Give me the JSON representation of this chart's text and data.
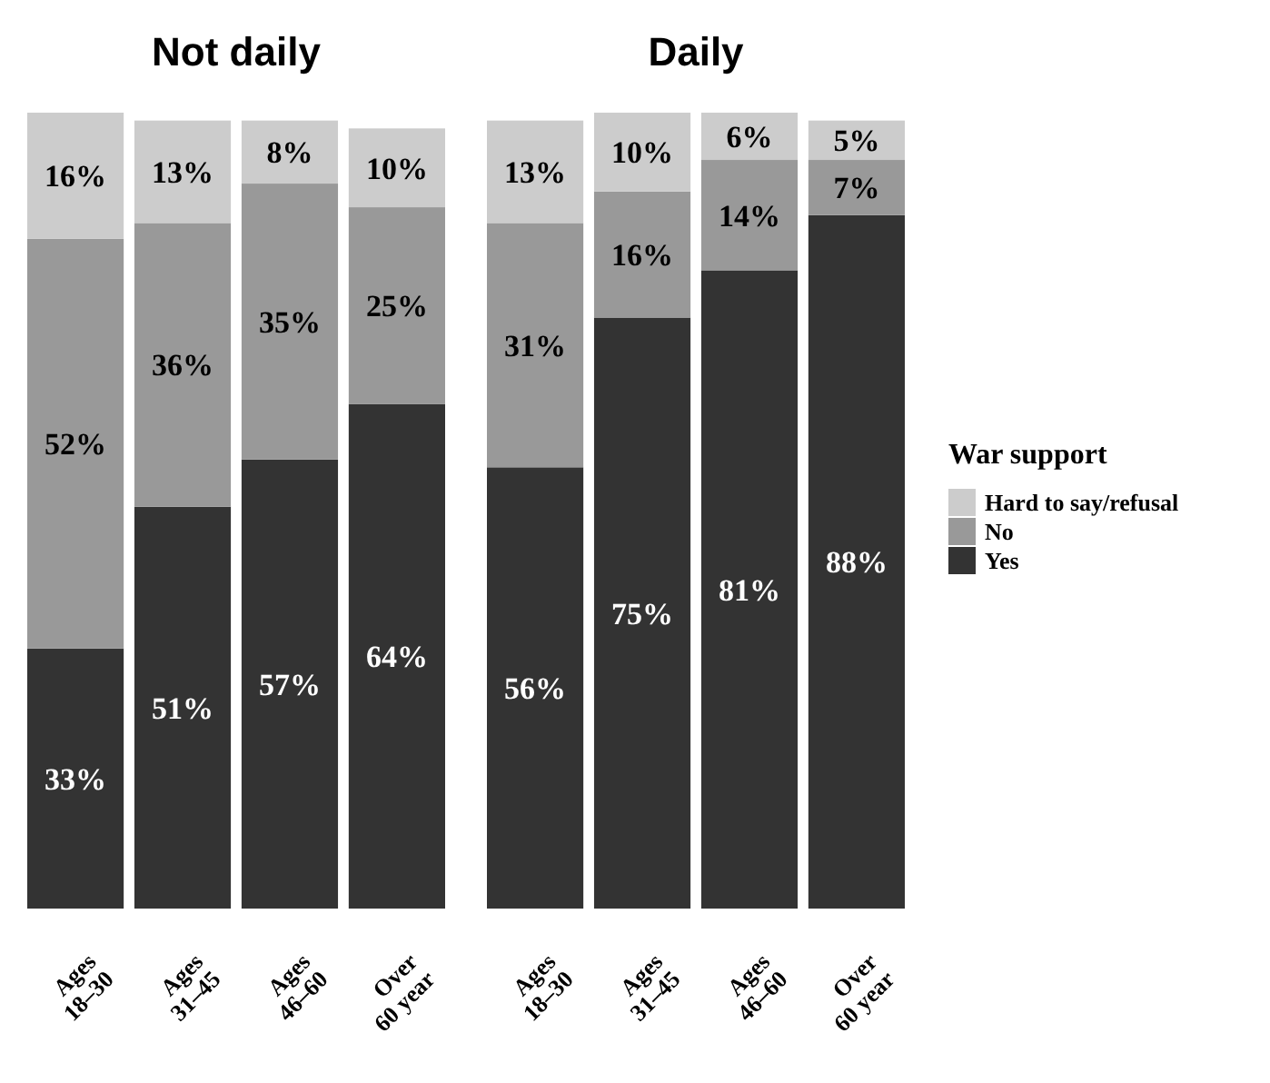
{
  "chart_data": [
    {
      "type": "bar",
      "title": "Not daily",
      "stacked": true,
      "legend": "right",
      "legend_title": "War support",
      "categories": [
        "Ages 18–30",
        "Ages 31–45",
        "Ages 46–60",
        "Over 60 year"
      ],
      "series": [
        {
          "name": "Yes",
          "color": "#333333",
          "values": [
            33,
            51,
            57,
            64
          ],
          "value_labels": [
            "33%",
            "51%",
            "57%",
            "64%"
          ]
        },
        {
          "name": "No",
          "color": "#999999",
          "values": [
            52,
            36,
            35,
            25
          ],
          "value_labels": [
            "52%",
            "36%",
            "35%",
            "25%"
          ]
        },
        {
          "name": "Hard to say/refusal",
          "color": "#cccccc",
          "values": [
            16,
            13,
            8,
            10
          ],
          "value_labels": [
            "16%",
            "13%",
            "8%",
            "10%"
          ]
        }
      ]
    },
    {
      "type": "bar",
      "title": "Daily",
      "stacked": true,
      "categories": [
        "Ages 18–30",
        "Ages 31–45",
        "Ages 46–60",
        "Over 60 year"
      ],
      "series": [
        {
          "color": "#333333",
          "values": [
            56,
            75,
            81,
            88
          ],
          "value_labels": [
            "56%",
            "75%",
            "81%",
            "88%"
          ]
        },
        {
          "color": "#999999",
          "values": [
            31,
            16,
            14,
            7
          ],
          "value_labels": [
            "31%",
            "16%",
            "14%",
            "7%"
          ]
        },
        {
          "color": "#cccccc",
          "values": [
            13,
            10,
            6,
            5
          ],
          "value_labels": [
            "13%",
            "10%",
            "6%",
            "5%"
          ]
        }
      ]
    }
  ]
}
